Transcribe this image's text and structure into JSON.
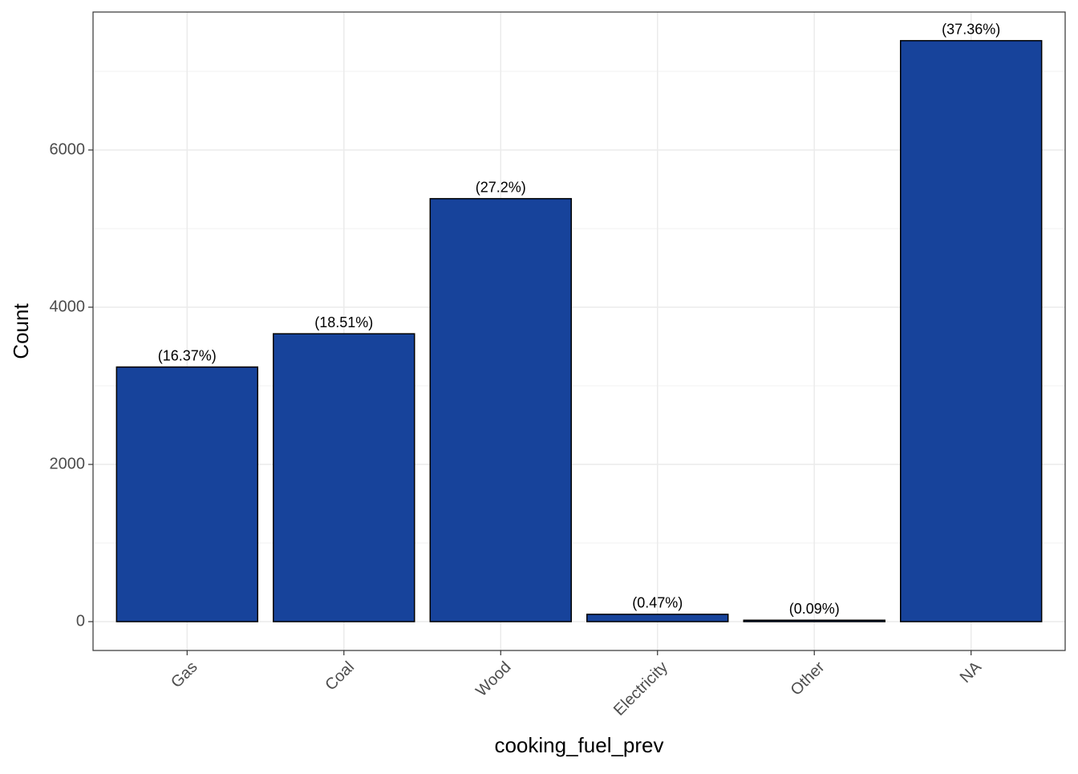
{
  "chart_data": {
    "type": "bar",
    "x_label": "cooking_fuel_prev",
    "y_label": "Count",
    "categories": [
      "Gas",
      "Coal",
      "Wood",
      "Electricity",
      "Other",
      "NA"
    ],
    "values": [
      3239,
      3662,
      5381,
      93,
      18,
      7391
    ],
    "bar_labels": [
      "(16.37%)",
      "(18.51%)",
      "(27.2%)",
      "(0.47%)",
      "(0.09%)",
      "(37.36%)"
    ],
    "color": "#17439b",
    "ylim": [
      -367,
      7755
    ],
    "yticks": [
      0,
      2000,
      4000,
      6000
    ],
    "minor_yticks": [
      1000,
      3000,
      5000,
      7000
    ],
    "grid": true
  }
}
